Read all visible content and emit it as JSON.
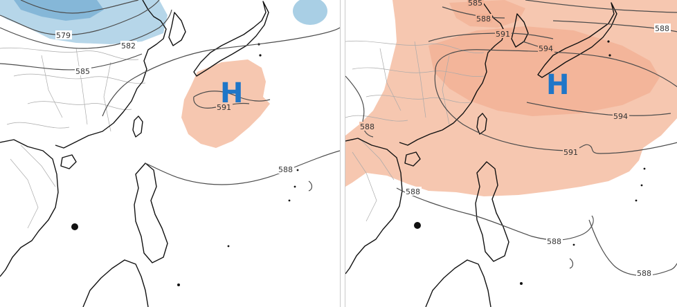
{
  "colors": {
    "high_anomaly": "#f6c7b0",
    "high_anomaly_strong": "#f2b296",
    "low_anomaly": "#a9cfe5",
    "low_anomaly_strong": "#7fb4d6",
    "high_mark": "#1f76c8",
    "contour_line": "#4b4b4b",
    "coastline": "#111111"
  },
  "left_panel": {
    "high_label": "H",
    "contours": [
      "579",
      "582",
      "585",
      "591",
      "588"
    ]
  },
  "right_panel": {
    "high_label": "H",
    "contours": [
      "585",
      "588",
      "591",
      "594",
      "588",
      "594",
      "591",
      "588",
      "588",
      "588",
      "588"
    ]
  }
}
